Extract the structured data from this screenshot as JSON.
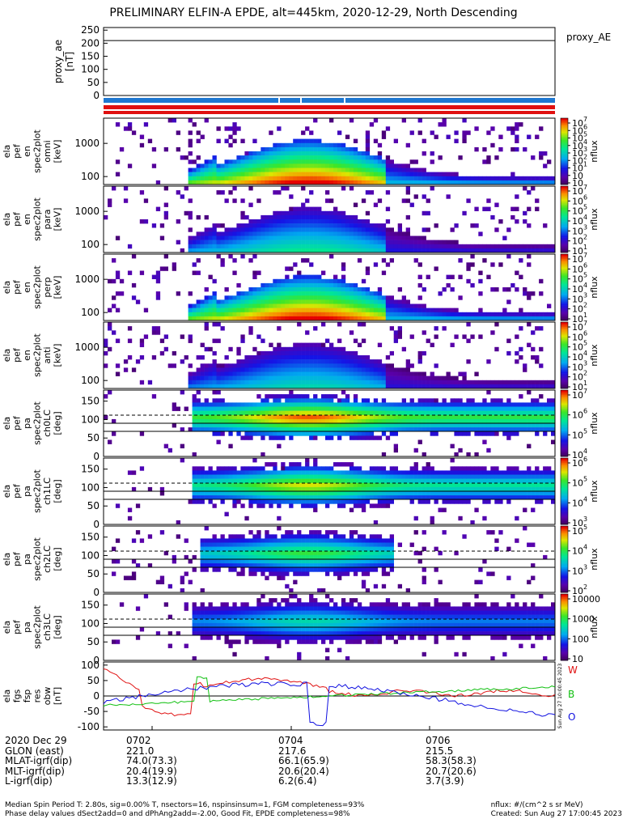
{
  "title": "PRELIMINARY ELFIN-A EPDE, alt=445km, 2020-12-29, North Descending",
  "colors": {
    "bar_blue": "#1f78d1",
    "bar_red": "#e01010",
    "fgm_red": "#e01010",
    "fgm_green": "#10c010",
    "fgm_blue": "#1010e0"
  },
  "proxy_ae": {
    "ylabel_lines": [
      "proxy_ae",
      "[nT]"
    ],
    "ticks": [
      "250",
      "200",
      "150",
      "100",
      "50",
      "0"
    ],
    "legend": "proxy_AE",
    "line_value": 210
  },
  "energy_panels": [
    {
      "ylabel_lines": [
        "ela",
        "pef",
        "en",
        "spec2plot",
        "omni",
        "[keV]"
      ],
      "yticks": [
        "1000",
        "100"
      ],
      "zlabel": "nflux",
      "cb_ticks": [
        "10",
        "10",
        "10",
        "10",
        "10",
        "10",
        "10",
        "10",
        "10"
      ],
      "cb_exps": [
        "7",
        "6",
        "5",
        "4",
        "3",
        "2",
        "1",
        "",
        ""
      ],
      "intensity": 1.0
    },
    {
      "ylabel_lines": [
        "ela",
        "pef",
        "en",
        "spec2plot",
        "para",
        "[keV]"
      ],
      "yticks": [
        "1000",
        "100"
      ],
      "zlabel": "nflux",
      "cb_ticks": [
        "10",
        "10",
        "10",
        "10",
        "10",
        "10",
        "10"
      ],
      "cb_exps": [
        "7",
        "6",
        "5",
        "4",
        "3",
        "2",
        "1"
      ],
      "intensity": 0.55
    },
    {
      "ylabel_lines": [
        "ela",
        "pef",
        "en",
        "spec2plot",
        "perp",
        "[keV]"
      ],
      "yticks": [
        "1000",
        "100"
      ],
      "zlabel": "nflux",
      "cb_ticks": [
        "10",
        "10",
        "10",
        "10",
        "10",
        "10",
        "10"
      ],
      "cb_exps": [
        "7",
        "6",
        "5",
        "4",
        "3",
        "2",
        "1"
      ],
      "intensity": 1.0
    },
    {
      "ylabel_lines": [
        "ela",
        "pef",
        "en",
        "spec2plot",
        "anti",
        "[keV]"
      ],
      "yticks": [
        "1000",
        "100"
      ],
      "zlabel": "nflux",
      "cb_ticks": [
        "10",
        "10",
        "10",
        "10",
        "10",
        "10",
        "10"
      ],
      "cb_exps": [
        "7",
        "6",
        "5",
        "4",
        "3",
        "2",
        "1"
      ],
      "intensity": 0.5
    }
  ],
  "pa_panels": [
    {
      "ylabel_lines": [
        "ela",
        "pef",
        "pa",
        "spec2plot",
        "ch0LC",
        "[deg]"
      ],
      "yticks": [
        "150",
        "100",
        "50",
        "0"
      ],
      "zlabel": "nflux",
      "cb_ticks": [
        "10",
        "10",
        "10",
        "10"
      ],
      "cb_exps": [
        "7",
        "6",
        "5",
        "4"
      ],
      "intensity": 1.0
    },
    {
      "ylabel_lines": [
        "ela",
        "pef",
        "pa",
        "spec2plot",
        "ch1LC",
        "[deg]"
      ],
      "yticks": [
        "150",
        "100",
        "50",
        "0"
      ],
      "zlabel": "nflux",
      "cb_ticks": [
        "10",
        "10",
        "10",
        "10"
      ],
      "cb_exps": [
        "6",
        "5",
        "4",
        "3"
      ],
      "intensity": 0.85
    },
    {
      "ylabel_lines": [
        "ela",
        "pef",
        "pa",
        "spec2plot",
        "ch2LC",
        "[deg]"
      ],
      "yticks": [
        "150",
        "100",
        "50",
        "0"
      ],
      "zlabel": "nflux",
      "cb_ticks": [
        "10",
        "10",
        "10",
        "10"
      ],
      "cb_exps": [
        "5",
        "4",
        "3",
        "2"
      ],
      "intensity": 0.7
    },
    {
      "ylabel_lines": [
        "ela",
        "pef",
        "pa",
        "spec2plot",
        "ch3LC",
        "[deg]"
      ],
      "yticks": [
        "150",
        "100",
        "50",
        "0"
      ],
      "zlabel": "nflux",
      "cb_ticks": [
        "10000",
        "1000",
        "100",
        "10"
      ],
      "cb_exps": [
        "",
        "",
        "",
        ""
      ],
      "intensity": 0.55
    }
  ],
  "fgm_panel": {
    "ylabel_lines": [
      "ela",
      "fgs",
      "fsp",
      "res",
      "obw",
      "[nT]"
    ],
    "yticks": [
      "100",
      "50",
      "0",
      "-50",
      "-100"
    ],
    "legend": [
      "W",
      "B",
      "O"
    ],
    "vertical_stamp": "Sun Aug 27 10:00:45 2023"
  },
  "bottom_table": {
    "rows": [
      {
        "label": "2020 Dec 29",
        "values": [
          "0702",
          "0704",
          "0706"
        ]
      },
      {
        "label": "GLON (east)",
        "values": [
          "221.0",
          "217.6",
          "215.5"
        ]
      },
      {
        "label": "MLAT-igrf(dip)",
        "values": [
          "74.0(73.3)",
          "66.1(65.9)",
          "58.3(58.3)"
        ]
      },
      {
        "label": "MLT-igrf(dip)",
        "values": [
          "20.4(19.9)",
          "20.6(20.4)",
          "20.7(20.6)"
        ]
      },
      {
        "label": "L-igrf(dip)",
        "values": [
          "13.3(12.9)",
          "6.2(6.4)",
          "3.7(3.9)"
        ]
      }
    ]
  },
  "footer": {
    "left_line1": "Median Spin Period T: 2.80s, sig=0.00% T, nsectors=16, nspinsinsum=1, FGM completeness=93%",
    "left_line2": "Phase delay values dSect2add=0 and dPhAng2add=-2.00, Good Fit, EPDE completeness=98%",
    "right_line1": "nflux: #/(cm^2 s sr MeV)",
    "right_line2": "Created: Sun Aug 27 17:00:45 2023"
  }
}
